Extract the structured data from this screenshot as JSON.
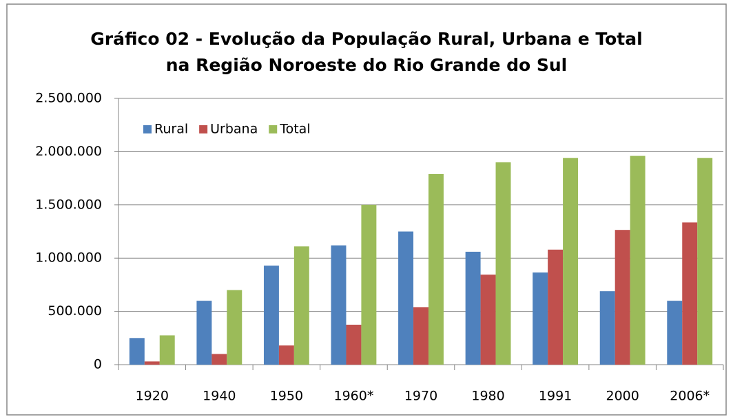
{
  "chart_data": {
    "type": "bar",
    "title": "Gráfico 02 - Evolução da População Rural, Urbana e Total na Região Noroeste do Rio Grande do Sul",
    "categories": [
      "1920",
      "1940",
      "1950",
      "1960*",
      "1970",
      "1980",
      "1991",
      "2000",
      "2006*"
    ],
    "series": [
      {
        "name": "Rural",
        "color": "#4f81bd",
        "values": [
          250000,
          600000,
          930000,
          1120000,
          1250000,
          1060000,
          865000,
          690000,
          600000
        ]
      },
      {
        "name": "Urbana",
        "color": "#c0504d",
        "values": [
          30000,
          100000,
          180000,
          375000,
          540000,
          845000,
          1080000,
          1265000,
          1335000
        ]
      },
      {
        "name": "Total",
        "color": "#9bbb59",
        "values": [
          275000,
          700000,
          1110000,
          1500000,
          1790000,
          1900000,
          1940000,
          1960000,
          1940000
        ]
      }
    ],
    "ylim": [
      0,
      2500000
    ],
    "yticks": [
      0,
      {
        "value": 500000,
        "label": "500.000"
      },
      {
        "value": 1000000,
        "label": "1.000.000"
      },
      {
        "value": 1500000,
        "label": "1.500.000"
      },
      {
        "value": 2000000,
        "label": "2.000.000"
      },
      {
        "value": 2500000,
        "label": "2.500.000"
      }
    ],
    "grid": true,
    "legend": "upper left"
  }
}
